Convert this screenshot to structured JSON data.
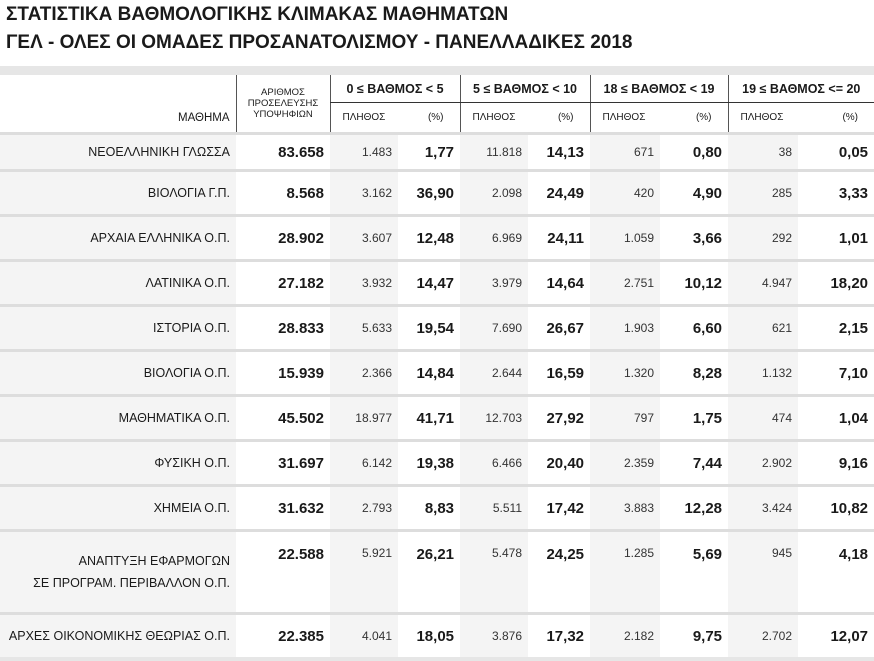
{
  "header": {
    "title": "ΣΤΑΤΙΣΤΙΚΑ ΒΑΘΜΟΛΟΓΙΚΗΣ ΚΛΙΜΑΚΑΣ ΜΑΘΗΜΑΤΩΝ",
    "subtitle": "ΓΕΛ - ΟΛΕΣ ΟΙ ΟΜΑΔΕΣ ΠΡΟΣΑΝΑΤΟΛΙΣΜΟΥ - ΠΑΝΕΛΛΑΔΙΚΕΣ 2018"
  },
  "table": {
    "subject_header": "ΜΑΘΗΜΑ",
    "count_header": [
      "ΑΡΙΘΜΟΣ",
      "ΠΡΟΣΕΛΕΥΣΗΣ",
      "ΥΠΟΨΗΦΙΩΝ"
    ],
    "groups": [
      "0 ≤ ΒΑΘΜΟΣ < 5",
      "5 ≤ ΒΑΘΜΟΣ < 10",
      "18 ≤ ΒΑΘΜΟΣ < 19",
      "19 ≤ ΒΑΘΜΟΣ <= 20"
    ],
    "subheaders": [
      "ΠΛΗΘΟΣ",
      "(%)",
      "ΠΛΗΘΟΣ",
      "(%)",
      "ΠΛΗΘΟΣ",
      "(%)",
      "ΠΛΗΘΟΣ",
      "(%)"
    ],
    "rows": [
      {
        "subject": [
          "ΝΕΟΕΛΛΗΝΙΚΗ ΓΛΩΣΣΑ"
        ],
        "cells": [
          "83.658",
          "1.483",
          "1,77",
          "11.818",
          "14,13",
          "671",
          "0,80",
          "38",
          "0,05"
        ]
      },
      {
        "subject": [
          "ΒΙΟΛΟΓΙΑ Γ.Π."
        ],
        "cells": [
          "8.568",
          "3.162",
          "36,90",
          "2.098",
          "24,49",
          "420",
          "4,90",
          "285",
          "3,33"
        ]
      },
      {
        "subject": [
          "ΑΡΧΑΙΑ ΕΛΛΗΝΙΚΑ Ο.Π."
        ],
        "cells": [
          "28.902",
          "3.607",
          "12,48",
          "6.969",
          "24,11",
          "1.059",
          "3,66",
          "292",
          "1,01"
        ]
      },
      {
        "subject": [
          "ΛΑΤΙΝΙΚΑ Ο.Π."
        ],
        "cells": [
          "27.182",
          "3.932",
          "14,47",
          "3.979",
          "14,64",
          "2.751",
          "10,12",
          "4.947",
          "18,20"
        ]
      },
      {
        "subject": [
          "ΙΣΤΟΡΙΑ Ο.Π."
        ],
        "cells": [
          "28.833",
          "5.633",
          "19,54",
          "7.690",
          "26,67",
          "1.903",
          "6,60",
          "621",
          "2,15"
        ]
      },
      {
        "subject": [
          "ΒΙΟΛΟΓΙΑ Ο.Π."
        ],
        "cells": [
          "15.939",
          "2.366",
          "14,84",
          "2.644",
          "16,59",
          "1.320",
          "8,28",
          "1.132",
          "7,10"
        ]
      },
      {
        "subject": [
          "ΜΑΘΗΜΑΤΙΚΑ Ο.Π."
        ],
        "cells": [
          "45.502",
          "18.977",
          "41,71",
          "12.703",
          "27,92",
          "797",
          "1,75",
          "474",
          "1,04"
        ]
      },
      {
        "subject": [
          "ΦΥΣΙΚΗ Ο.Π."
        ],
        "cells": [
          "31.697",
          "6.142",
          "19,38",
          "6.466",
          "20,40",
          "2.359",
          "7,44",
          "2.902",
          "9,16"
        ]
      },
      {
        "subject": [
          "ΧΗΜΕΙΑ Ο.Π."
        ],
        "cells": [
          "31.632",
          "2.793",
          "8,83",
          "5.511",
          "17,42",
          "3.883",
          "12,28",
          "3.424",
          "10,82"
        ]
      },
      {
        "subject": [
          "ΑΝΑΠΤΥΞΗ ΕΦΑΡΜΟΓΩΝ",
          "ΣΕ ΠΡΟΓΡΑΜ. ΠΕΡΙΒΑΛΛΟΝ Ο.Π."
        ],
        "cells": [
          "22.588",
          "5.921",
          "26,21",
          "5.478",
          "24,25",
          "1.285",
          "5,69",
          "945",
          "4,18"
        ]
      },
      {
        "subject": [
          "ΑΡΧΕΣ ΟΙΚΟΝΟΜΙΚΗΣ ΘΕΩΡΙΑΣ Ο.Π."
        ],
        "cells": [
          "22.385",
          "4.041",
          "18,05",
          "3.876",
          "17,32",
          "2.182",
          "9,75",
          "2.702",
          "12,07"
        ]
      }
    ]
  }
}
